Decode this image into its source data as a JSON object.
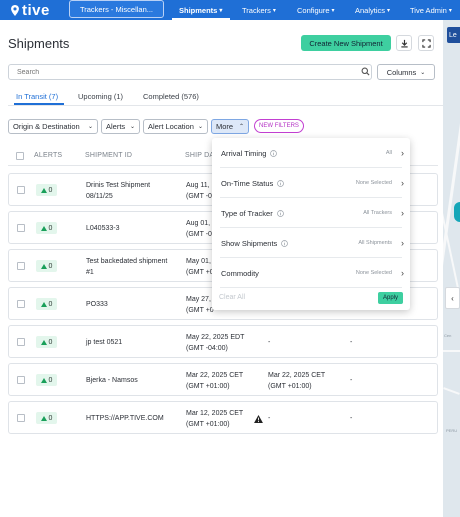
{
  "nav": {
    "logo_text": "tive",
    "tracker_selector": "Trackers - Miscellan...",
    "items": [
      {
        "label": "Shipments",
        "active": true
      },
      {
        "label": "Trackers",
        "active": false
      },
      {
        "label": "Configure",
        "active": false
      },
      {
        "label": "Analytics",
        "active": false
      },
      {
        "label": "Tive Admin",
        "active": false
      }
    ]
  },
  "page": {
    "title": "Shipments",
    "create_button": "Create New Shipment",
    "download_icon": "download-icon",
    "fullscreen_icon": "fullscreen-icon"
  },
  "search": {
    "placeholder": "Search",
    "columns_button": "Columns"
  },
  "tabs": [
    {
      "label": "In Transit (7)",
      "active": true
    },
    {
      "label": "Upcoming (1)",
      "active": false
    },
    {
      "label": "Completed (576)",
      "active": false
    }
  ],
  "filters": {
    "origin_destination": "Origin & Destination",
    "alerts": "Alerts",
    "alert_location": "Alert Location",
    "more": "More",
    "new_filters": "NEW FILTERS"
  },
  "table": {
    "headers": {
      "alerts": "ALERTS",
      "shipment_id": "SHIPMENT ID",
      "ship_date": "SHIP DA"
    },
    "rows": [
      {
        "alerts": "0",
        "shipment_id": [
          "Drinis Test Shipment",
          "08/11/25"
        ],
        "ship_date": [
          "Aug 11, ",
          "(GMT -0"
        ],
        "col4": "",
        "col5": "",
        "warning": false
      },
      {
        "alerts": "0",
        "shipment_id": [
          "L040533-3"
        ],
        "ship_date": [
          "Aug 01, ",
          "(GMT -0"
        ],
        "col4": "",
        "col5": "",
        "warning": false
      },
      {
        "alerts": "0",
        "shipment_id": [
          "Test backedated shipment",
          "#1"
        ],
        "ship_date": [
          "May 01, ",
          "(GMT +0"
        ],
        "col4": "",
        "col5": "",
        "warning": false
      },
      {
        "alerts": "0",
        "shipment_id": [
          "PO333"
        ],
        "ship_date": [
          "May 27, ",
          "(GMT +0"
        ],
        "col4": "",
        "col5": "",
        "warning": false
      },
      {
        "alerts": "0",
        "shipment_id": [
          "jp test 0521"
        ],
        "ship_date": [
          "May 22, 2025 EDT",
          "(GMT -04:00)"
        ],
        "col4": "-",
        "col5": "-",
        "warning": false
      },
      {
        "alerts": "0",
        "shipment_id": [
          "Bjerka - Namsos"
        ],
        "ship_date": [
          "Mar 22, 2025 CET",
          "(GMT +01:00)"
        ],
        "col4": "Mar 22, 2025 CET",
        "col4_line2": "(GMT +01:00)",
        "col5": "-",
        "warning": false
      },
      {
        "alerts": "0",
        "shipment_id": [
          "HTTPS://APP.TIVE.COM"
        ],
        "ship_date": [
          "Mar 12, 2025 CET",
          "(GMT +01:00)"
        ],
        "col4": "-",
        "col5": "-",
        "warning": true
      }
    ]
  },
  "more_panel": {
    "rows": [
      {
        "label": "Arrival Timing",
        "value": "All"
      },
      {
        "label": "On-Time Status",
        "value": "None Selected"
      },
      {
        "label": "Type of Tracker",
        "value": "All Trackers"
      },
      {
        "label": "Show Shipments",
        "value": "All Shipments"
      },
      {
        "label": "Commodity",
        "value": "None Selected"
      }
    ],
    "clear_all": "Clear All",
    "apply": "Apply"
  },
  "map": {
    "button_label": "Le",
    "labels": [
      "Cen",
      "PERU"
    ]
  },
  "colors": {
    "nav_blue": "#1f6fd6",
    "accent_green": "#3ecfa0",
    "new_filters_purple": "#b32fc4",
    "alert_green": "#1aa05a"
  }
}
